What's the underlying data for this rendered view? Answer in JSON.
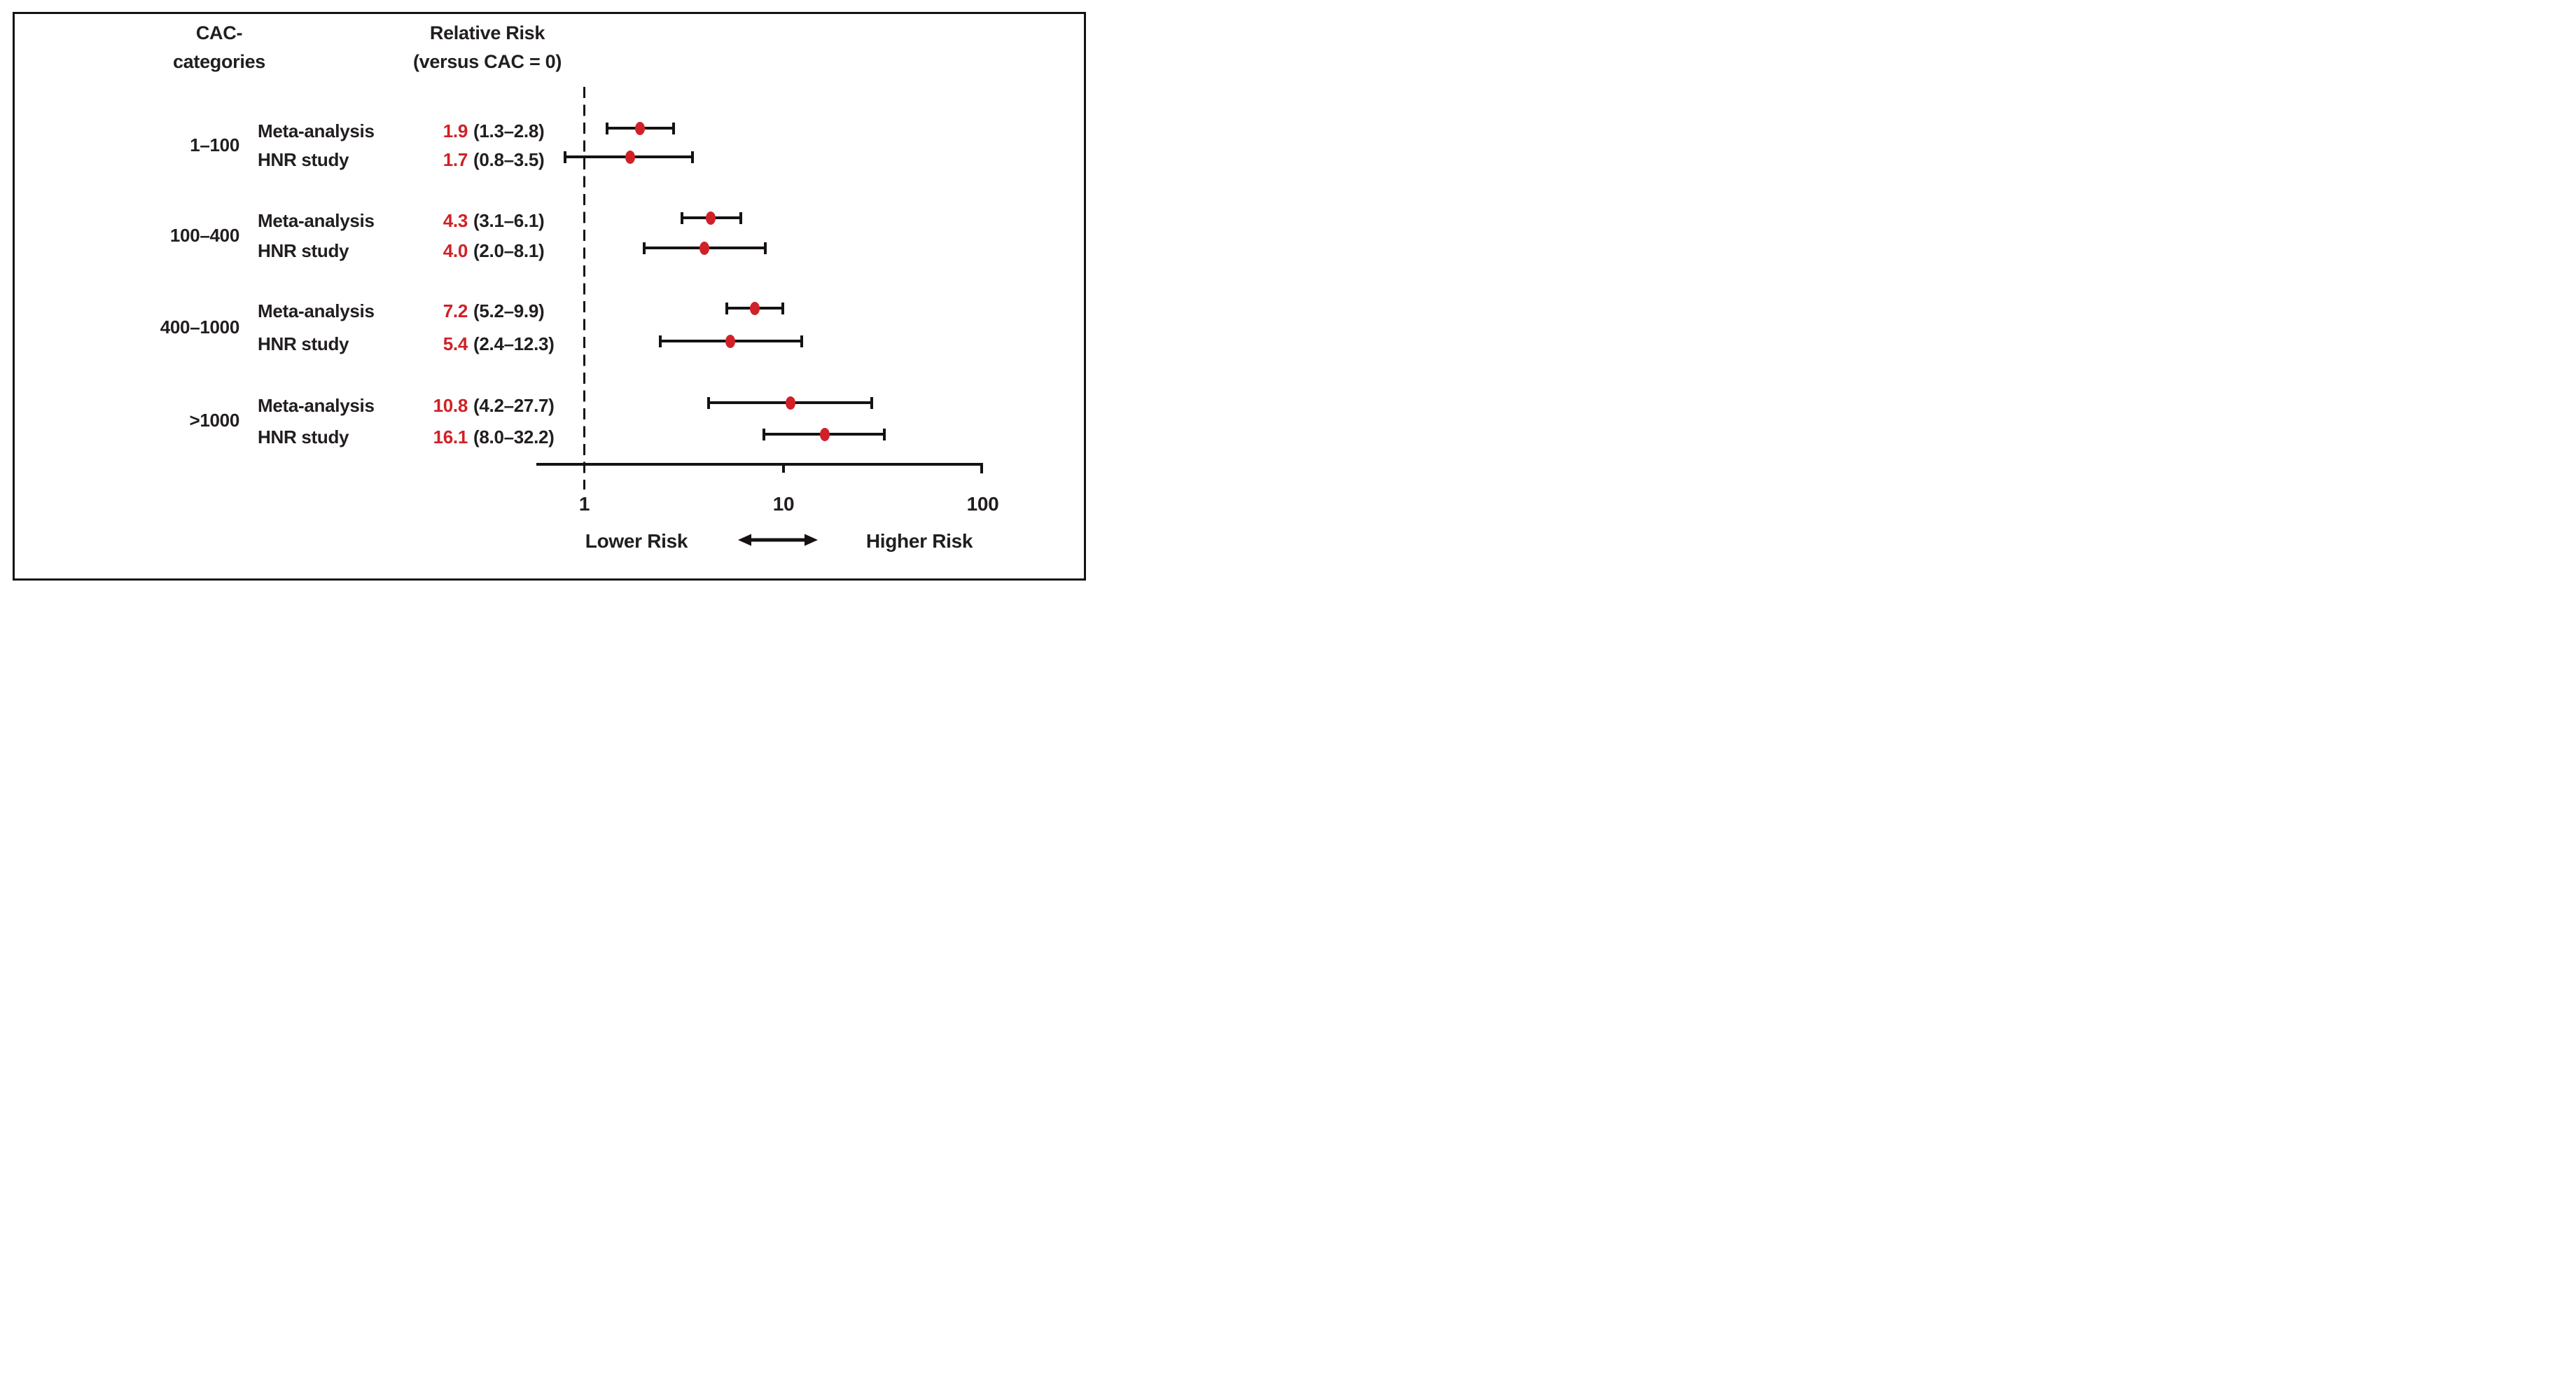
{
  "chart_data": {
    "type": "forest",
    "header": {
      "left": [
        "CAC-",
        "categories"
      ],
      "right": [
        "Relative Risk",
        "(versus CAC = 0)"
      ]
    },
    "x_axis": {
      "scale": "log",
      "ticks": [
        1,
        10,
        100
      ],
      "tick_labels": [
        "1",
        "10",
        "100"
      ],
      "range_approx": [
        0.58,
        110
      ],
      "reference_line": 1
    },
    "direction_labels": {
      "left": "Lower Risk",
      "right": "Higher Risk"
    },
    "groups": [
      {
        "category": "1–100",
        "rows": [
          {
            "study": "Meta-analysis",
            "estimate": 1.9,
            "ci_low": 1.3,
            "ci_high": 2.8,
            "label_value": "1.9",
            "label_ci": "(1.3–2.8)"
          },
          {
            "study": "HNR study",
            "estimate": 1.7,
            "ci_low": 0.8,
            "ci_high": 3.5,
            "label_value": "1.7",
            "label_ci": "(0.8–3.5)"
          }
        ]
      },
      {
        "category": "100–400",
        "rows": [
          {
            "study": "Meta-analysis",
            "estimate": 4.3,
            "ci_low": 3.1,
            "ci_high": 6.1,
            "label_value": "4.3",
            "label_ci": "(3.1–6.1)"
          },
          {
            "study": "HNR study",
            "estimate": 4.0,
            "ci_low": 2.0,
            "ci_high": 8.1,
            "label_value": "4.0",
            "label_ci": "(2.0–8.1)"
          }
        ]
      },
      {
        "category": "400–1000",
        "rows": [
          {
            "study": "Meta-analysis",
            "estimate": 7.2,
            "ci_low": 5.2,
            "ci_high": 9.9,
            "label_value": "7.2",
            "label_ci": "(5.2–9.9)"
          },
          {
            "study": "HNR study",
            "estimate": 5.4,
            "ci_low": 2.4,
            "ci_high": 12.3,
            "label_value": "5.4",
            "label_ci": "(2.4–12.3)"
          }
        ]
      },
      {
        "category": ">1000",
        "rows": [
          {
            "study": "Meta-analysis",
            "estimate": 10.8,
            "ci_low": 4.2,
            "ci_high": 27.7,
            "label_value": "10.8",
            "label_ci": "(4.2–27.7)"
          },
          {
            "study": "HNR study",
            "estimate": 16.1,
            "ci_low": 8.0,
            "ci_high": 32.2,
            "label_value": "16.1",
            "label_ci": "(8.0–32.2)"
          }
        ]
      }
    ],
    "colors": {
      "estimate_text": "#d02027",
      "marker": "#cf2127",
      "ink": "#161213"
    }
  }
}
